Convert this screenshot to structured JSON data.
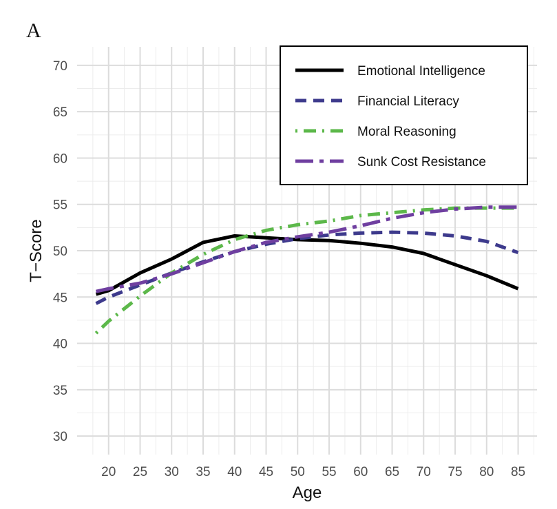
{
  "panel_label": "A",
  "chart_data": {
    "type": "line",
    "title": "",
    "xlabel": "Age",
    "ylabel": "T−Score",
    "xlim": [
      15,
      88
    ],
    "ylim": [
      28,
      72
    ],
    "xticks": [
      20,
      25,
      30,
      35,
      40,
      45,
      50,
      55,
      60,
      65,
      70,
      75,
      80,
      85
    ],
    "yticks": [
      30,
      35,
      40,
      45,
      50,
      55,
      60,
      65,
      70
    ],
    "grid": true,
    "legend_position": "top-right",
    "series": [
      {
        "name": "Emotional Intelligence",
        "color": "#000000",
        "dash": "solid",
        "x": [
          18,
          20,
          25,
          30,
          35,
          40,
          45,
          50,
          55,
          60,
          65,
          70,
          75,
          80,
          85
        ],
        "y": [
          45.3,
          45.7,
          47.6,
          49.1,
          50.9,
          51.6,
          51.4,
          51.2,
          51.1,
          50.8,
          50.4,
          49.7,
          48.5,
          47.3,
          45.9
        ]
      },
      {
        "name": "Financial Literacy",
        "color": "#3d3a8c",
        "dash": "dashed",
        "x": [
          18,
          20,
          25,
          30,
          35,
          40,
          45,
          50,
          55,
          60,
          65,
          70,
          75,
          80,
          85
        ],
        "y": [
          44.3,
          45.0,
          46.3,
          47.6,
          48.8,
          49.9,
          50.7,
          51.3,
          51.7,
          51.9,
          52.0,
          51.9,
          51.6,
          51.0,
          49.8
        ]
      },
      {
        "name": "Moral Reasoning",
        "color": "#5cb84a",
        "dash": "dotdash",
        "x": [
          18,
          20,
          25,
          30,
          35,
          40,
          45,
          50,
          55,
          60,
          65,
          70,
          75,
          80,
          85
        ],
        "y": [
          41.1,
          42.4,
          45.1,
          47.6,
          49.6,
          51.2,
          52.2,
          52.8,
          53.2,
          53.8,
          54.1,
          54.4,
          54.6,
          54.6,
          54.6
        ]
      },
      {
        "name": "Sunk Cost Resistance",
        "color": "#6f3fa0",
        "dash": "longdash",
        "x": [
          18,
          20,
          25,
          30,
          35,
          40,
          45,
          50,
          55,
          60,
          65,
          70,
          75,
          80,
          85
        ],
        "y": [
          45.6,
          45.9,
          46.5,
          47.5,
          48.7,
          49.9,
          50.9,
          51.5,
          52.0,
          52.7,
          53.5,
          54.1,
          54.5,
          54.7,
          54.7
        ]
      }
    ]
  }
}
